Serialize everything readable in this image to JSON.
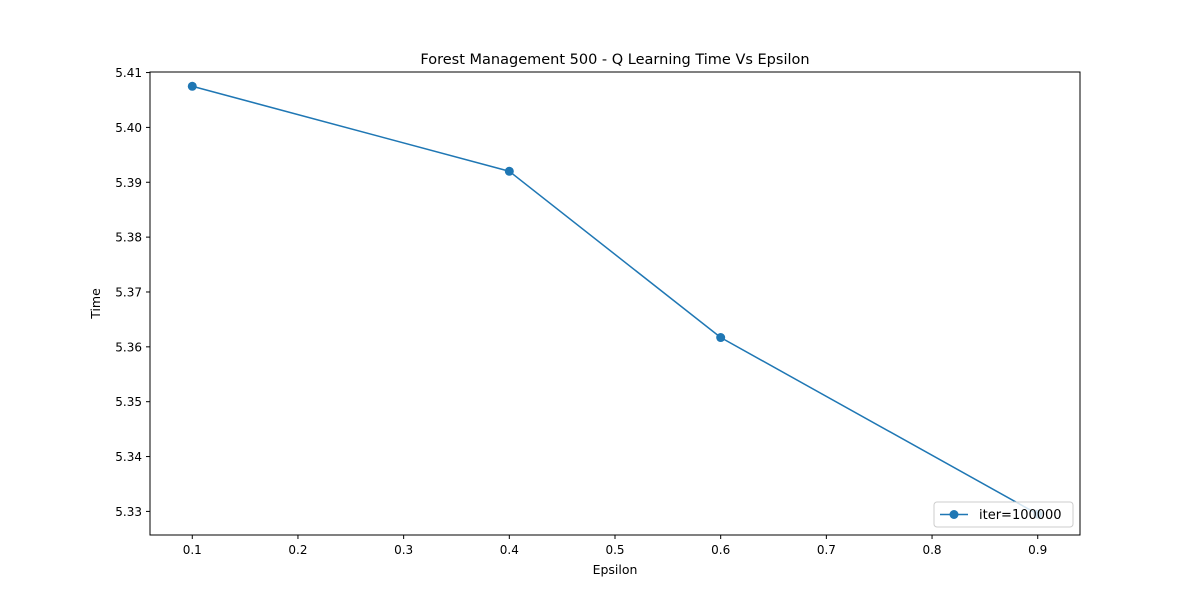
{
  "chart_data": {
    "type": "line",
    "title": "Forest Management 500 - Q Learning Time Vs Epsilon",
    "xlabel": "Epsilon",
    "ylabel": "Time",
    "xlim": [
      0.06,
      0.94
    ],
    "ylim": [
      5.3257,
      5.4101
    ],
    "xticks": [
      0.1,
      0.2,
      0.3,
      0.4,
      0.5,
      0.6,
      0.7,
      0.8,
      0.9
    ],
    "xtick_labels": [
      "0.1",
      "0.2",
      "0.3",
      "0.4",
      "0.5",
      "0.6",
      "0.7",
      "0.8",
      "0.9"
    ],
    "yticks": [
      5.33,
      5.34,
      5.35,
      5.36,
      5.37,
      5.38,
      5.39,
      5.4,
      5.41
    ],
    "ytick_labels": [
      "5.33",
      "5.34",
      "5.35",
      "5.36",
      "5.37",
      "5.38",
      "5.39",
      "5.40",
      "5.41"
    ],
    "grid": false,
    "legend_position": "lower right",
    "series": [
      {
        "name": "iter=100000",
        "color": "#1f77b4",
        "marker": "circle",
        "x": [
          0.1,
          0.4,
          0.6,
          0.9
        ],
        "y": [
          5.4075,
          5.392,
          5.3617,
          5.3295
        ]
      }
    ]
  }
}
